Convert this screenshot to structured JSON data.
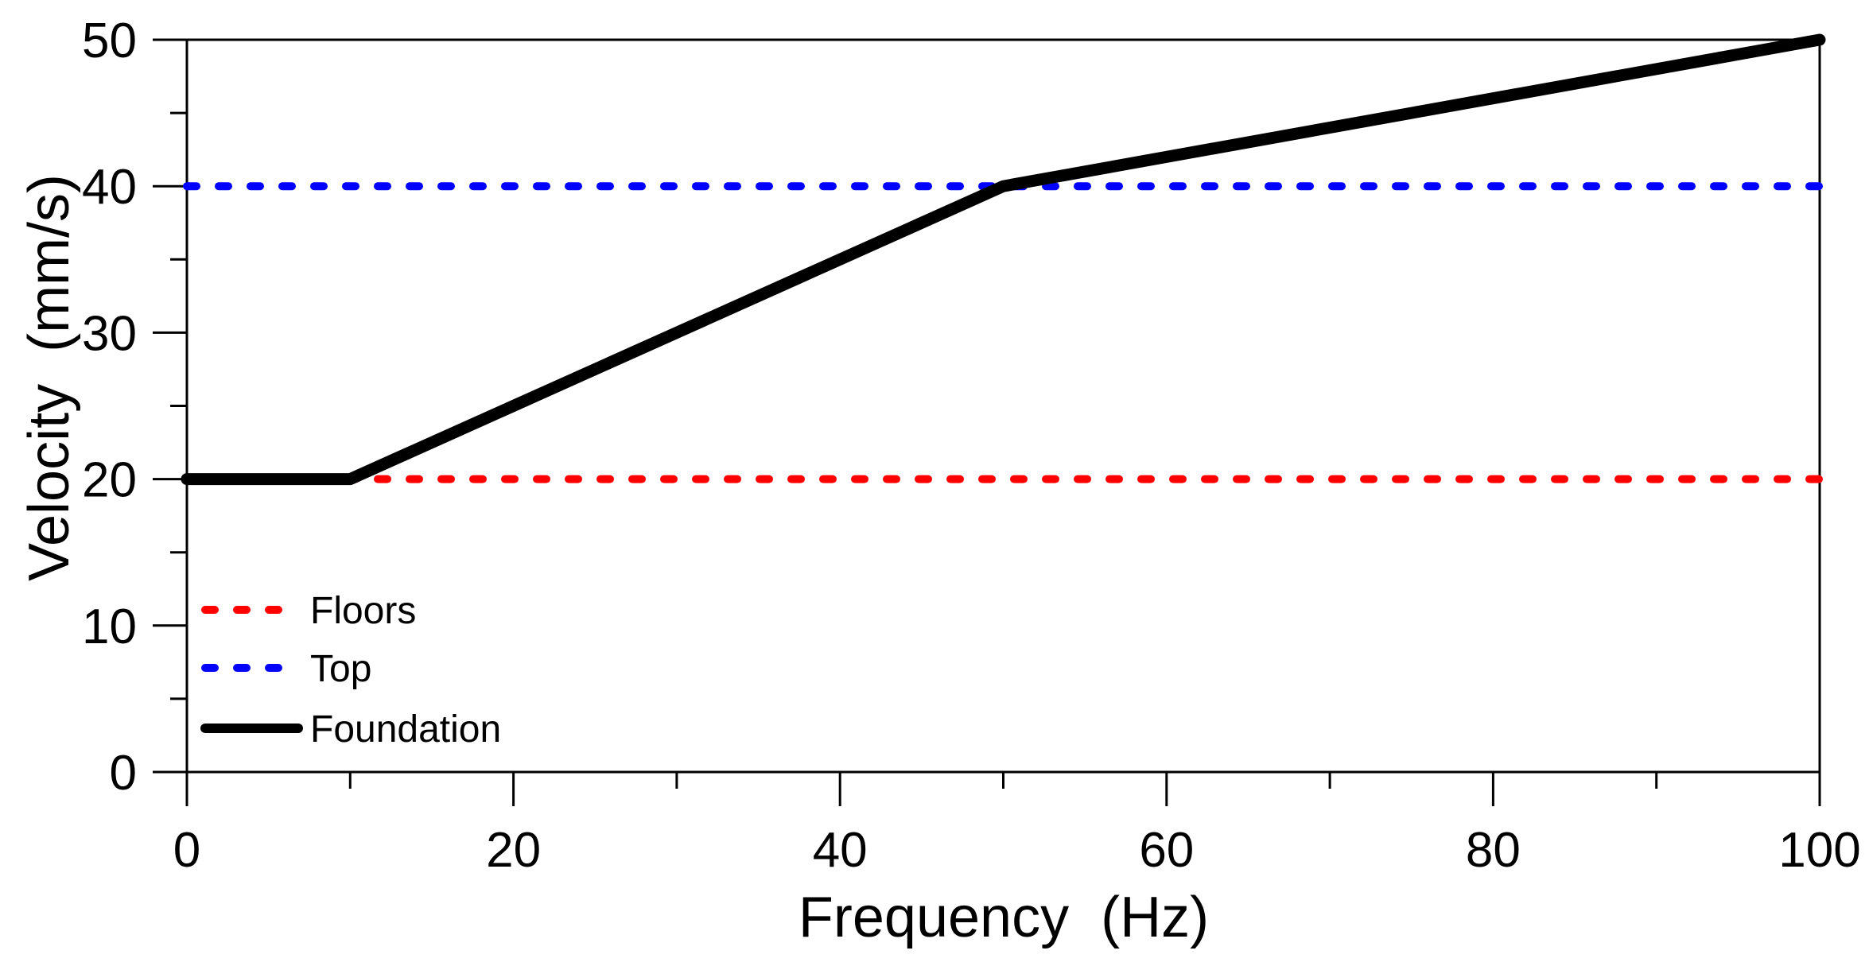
{
  "chart_data": {
    "type": "line",
    "xlabel": "Frequency  (Hz)",
    "ylabel": "Velocity  (mm/s)",
    "xlim": [
      0,
      100
    ],
    "ylim": [
      0,
      50
    ],
    "x_major_ticks": [
      0,
      20,
      40,
      60,
      80,
      100
    ],
    "x_minor_ticks": [
      10,
      30,
      50,
      70,
      90
    ],
    "y_major_ticks": [
      0,
      10,
      20,
      30,
      40,
      50
    ],
    "y_minor_ticks": [
      5,
      15,
      25,
      35,
      45
    ],
    "grid": false,
    "legend_position": "lower-left",
    "series": [
      {
        "name": "Floors",
        "color": "#ff0000",
        "style": "dashed",
        "points": [
          [
            0,
            20
          ],
          [
            100,
            20
          ]
        ]
      },
      {
        "name": "Top",
        "color": "#0000ff",
        "style": "dashed",
        "points": [
          [
            0,
            40
          ],
          [
            100,
            40
          ]
        ]
      },
      {
        "name": "Foundation",
        "color": "#000000",
        "style": "solid",
        "points": [
          [
            0,
            20
          ],
          [
            10,
            20
          ],
          [
            50,
            40
          ],
          [
            100,
            50
          ]
        ]
      }
    ]
  },
  "colors": {
    "background": "#ffffff",
    "axis": "#000000",
    "floors_line": "#ff0000",
    "top_line": "#0000ff",
    "foundation_line": "#000000"
  }
}
